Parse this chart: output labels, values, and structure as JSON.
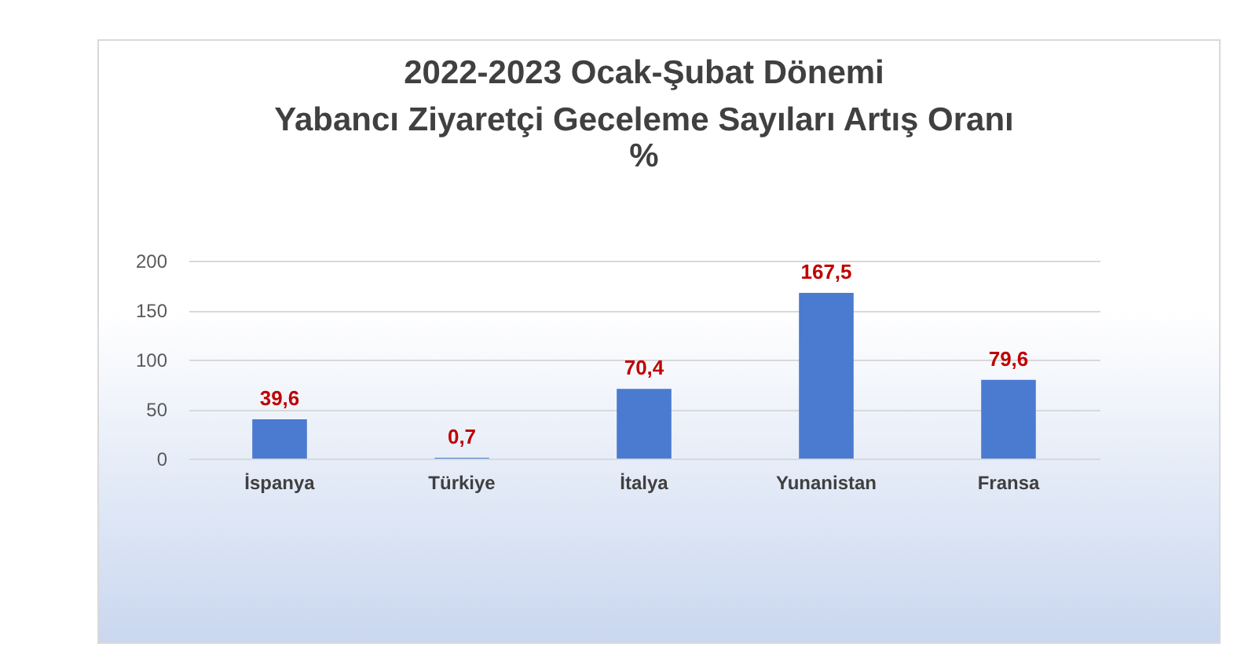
{
  "chart_data": {
    "type": "bar",
    "title": "2022-2023 Ocak-Şubat Dönemi\nYabancı Ziyaretçi Geceleme Sayıları Artış Oranı",
    "subtitle": "%",
    "categories": [
      "İspanya",
      "Türkiye",
      "İtalya",
      "Yunanistan",
      "Fransa"
    ],
    "values": [
      39.6,
      0.7,
      70.4,
      167.5,
      79.6
    ],
    "value_labels": [
      "39,6",
      "0,7",
      "70,4",
      "167,5",
      "79,6"
    ],
    "color": "#4a7bd0",
    "ylim": [
      0,
      200
    ],
    "yticks": [
      0,
      50,
      100,
      150,
      200
    ],
    "grid": "y"
  }
}
